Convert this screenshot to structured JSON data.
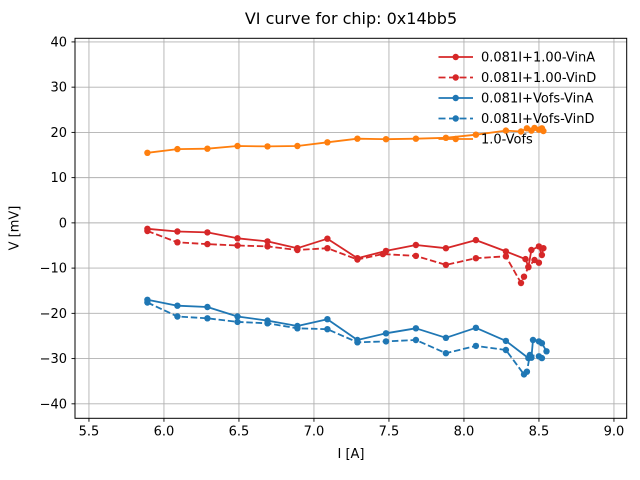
{
  "chart_data": {
    "type": "line",
    "title": "VI curve for chip: 0x14bb5",
    "xlabel": "I [A]",
    "ylabel": "V [mV]",
    "xlim": [
      5.407,
      9.085
    ],
    "ylim": [
      -43.2,
      40.8
    ],
    "grid": true,
    "legend_position": "upper right",
    "legend_frame": false,
    "xticks": [
      5.5,
      6.0,
      6.5,
      7.0,
      7.5,
      8.0,
      8.5,
      9.0
    ],
    "xtick_labels": [
      "5.5",
      "6.0",
      "6.5",
      "7.0",
      "7.5",
      "8.0",
      "8.5",
      "9.0"
    ],
    "yticks": [
      -40,
      -30,
      -20,
      -10,
      0,
      10,
      20,
      30,
      40
    ],
    "ytick_labels": [
      "−40",
      "−30",
      "−20",
      "−10",
      "0",
      "10",
      "20",
      "30",
      "40"
    ],
    "colors": {
      "red": "#d62728",
      "blue": "#1f77b4",
      "orange": "#ff7f0e",
      "grid": "#b0b0b0",
      "spine": "#000000",
      "text": "#000000"
    },
    "series": [
      {
        "name": "0.081I+1.00-VinA",
        "color": "#d62728",
        "style": "solid",
        "marker": "circle",
        "x": [
          5.89,
          6.09,
          6.29,
          6.49,
          6.69,
          6.89,
          7.09,
          7.29,
          7.48,
          7.68,
          7.88,
          8.08,
          8.28,
          8.41,
          8.43,
          8.45,
          8.5,
          8.52,
          8.53
        ],
        "y": [
          -1.3,
          -1.9,
          -2.1,
          -3.4,
          -4.1,
          -5.6,
          -3.5,
          -7.8,
          -6.2,
          -4.9,
          -5.6,
          -3.8,
          -6.3,
          -8.0,
          -9.7,
          -6.0,
          -5.2,
          -7.1,
          -5.6
        ]
      },
      {
        "name": "0.081I+1.00-VinD",
        "color": "#d62728",
        "style": "dashed",
        "marker": "circle",
        "x": [
          5.89,
          6.09,
          6.29,
          6.49,
          6.69,
          6.89,
          7.09,
          7.29,
          7.46,
          7.68,
          7.88,
          8.08,
          8.28,
          8.38,
          8.4,
          8.43,
          8.47,
          8.5
        ],
        "y": [
          -1.8,
          -4.3,
          -4.7,
          -5.0,
          -5.2,
          -6.0,
          -5.6,
          -8.1,
          -6.9,
          -7.3,
          -9.3,
          -7.8,
          -7.4,
          -13.3,
          -11.9,
          -9.8,
          -8.2,
          -8.8
        ]
      },
      {
        "name": "0.081I+Vofs-VinA",
        "color": "#1f77b4",
        "style": "solid",
        "marker": "circle",
        "x": [
          5.89,
          6.09,
          6.29,
          6.49,
          6.69,
          6.89,
          7.09,
          7.29,
          7.48,
          7.68,
          7.88,
          8.08,
          8.28,
          8.43,
          8.45,
          8.46,
          8.5,
          8.52,
          8.55
        ],
        "y": [
          -17.0,
          -18.3,
          -18.6,
          -20.7,
          -21.6,
          -22.8,
          -21.3,
          -25.9,
          -24.4,
          -23.3,
          -25.4,
          -23.2,
          -26.1,
          -29.9,
          -29.8,
          -25.9,
          -26.2,
          -26.6,
          -28.4
        ]
      },
      {
        "name": "0.081I+Vofs-VinD",
        "color": "#1f77b4",
        "style": "dashed",
        "marker": "circle",
        "x": [
          5.89,
          6.09,
          6.29,
          6.49,
          6.69,
          6.89,
          7.09,
          7.29,
          7.48,
          7.68,
          7.88,
          8.08,
          8.28,
          8.4,
          8.42,
          8.44,
          8.5,
          8.52
        ],
        "y": [
          -17.6,
          -20.7,
          -21.1,
          -21.9,
          -22.2,
          -23.3,
          -23.5,
          -26.4,
          -26.2,
          -25.9,
          -28.8,
          -27.2,
          -28.1,
          -33.5,
          -32.9,
          -29.2,
          -29.5,
          -29.9
        ]
      },
      {
        "name": "1.0-Vofs",
        "color": "#ff7f0e",
        "style": "solid",
        "marker": "circle",
        "x": [
          5.89,
          6.09,
          6.29,
          6.49,
          6.69,
          6.89,
          7.09,
          7.29,
          7.48,
          7.68,
          7.88,
          8.08,
          8.28,
          8.38,
          8.42,
          8.45,
          8.47,
          8.5,
          8.52,
          8.53
        ],
        "y": [
          15.5,
          16.3,
          16.4,
          17.0,
          16.9,
          17.0,
          17.8,
          18.6,
          18.5,
          18.6,
          18.8,
          19.5,
          20.4,
          20.2,
          20.9,
          20.4,
          21.0,
          20.6,
          20.9,
          20.3
        ]
      }
    ]
  }
}
